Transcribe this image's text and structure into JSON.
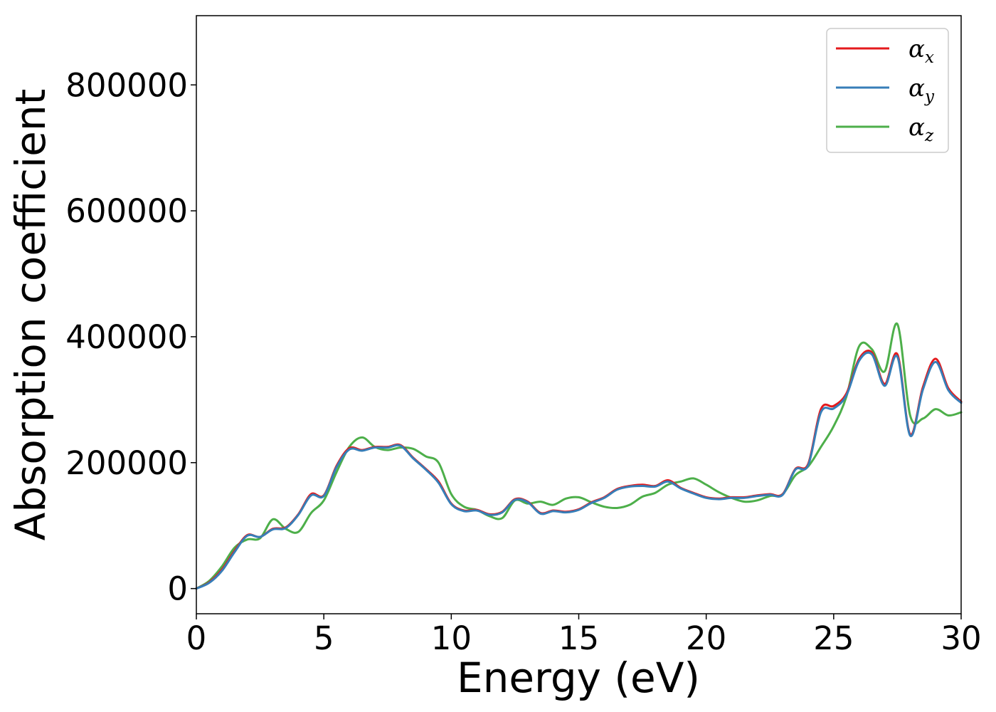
{
  "chart_data": {
    "type": "line",
    "xlabel": "Energy (eV)",
    "ylabel": "Absorption coefficient",
    "xlim": [
      0,
      30
    ],
    "ylim": [
      -40000,
      910000
    ],
    "xticks": [
      0,
      5,
      10,
      15,
      20,
      25,
      30
    ],
    "xtick_labels": [
      "0",
      "5",
      "10",
      "15",
      "20",
      "25",
      "30"
    ],
    "yticks": [
      0,
      200000,
      400000,
      600000,
      800000
    ],
    "ytick_labels": [
      "0",
      "200000",
      "400000",
      "600000",
      "800000"
    ],
    "grid": false,
    "legend_position": "top-right",
    "series": [
      {
        "name": "α",
        "subscript": "x",
        "color": "#e41a1c",
        "x": [
          0,
          0.5,
          1,
          1.5,
          2,
          2.5,
          3,
          3.5,
          4,
          4.5,
          5,
          5.5,
          6,
          6.5,
          7,
          7.5,
          8,
          8.5,
          9,
          9.5,
          10,
          10.5,
          11,
          11.5,
          12,
          12.5,
          13,
          13.5,
          14,
          14.5,
          15,
          15.5,
          16,
          16.5,
          17,
          17.5,
          18,
          18.5,
          19,
          19.5,
          20,
          20.5,
          21,
          21.5,
          22,
          22.5,
          23,
          23.5,
          24,
          24.5,
          25,
          25.5,
          26,
          26.5,
          27,
          27.5,
          28,
          28.5,
          29,
          29.5,
          30
        ],
        "y": [
          0,
          10000,
          30000,
          60000,
          85000,
          82000,
          95000,
          97000,
          118000,
          150000,
          148000,
          195000,
          223000,
          220000,
          225000,
          225000,
          228000,
          208000,
          190000,
          170000,
          135000,
          124000,
          125000,
          118000,
          122000,
          142000,
          138000,
          120000,
          124000,
          122000,
          126000,
          137000,
          145000,
          158000,
          163000,
          165000,
          163000,
          172000,
          160000,
          152000,
          145000,
          143000,
          145000,
          145000,
          148000,
          150000,
          150000,
          190000,
          198000,
          285000,
          290000,
          310000,
          365000,
          375000,
          325000,
          372000,
          245000,
          320000,
          365000,
          318000,
          297000
        ]
      },
      {
        "name": "α",
        "subscript": "y",
        "color": "#377eb8",
        "x": [
          0,
          0.5,
          1,
          1.5,
          2,
          2.5,
          3,
          3.5,
          4,
          4.5,
          5,
          5.5,
          6,
          6.5,
          7,
          7.5,
          8,
          8.5,
          9,
          9.5,
          10,
          10.5,
          11,
          11.5,
          12,
          12.5,
          13,
          13.5,
          14,
          14.5,
          15,
          15.5,
          16,
          16.5,
          17,
          17.5,
          18,
          18.5,
          19,
          19.5,
          20,
          20.5,
          21,
          21.5,
          22,
          22.5,
          23,
          23.5,
          24,
          24.5,
          25,
          25.5,
          26,
          26.5,
          27,
          27.5,
          28,
          28.5,
          29,
          29.5,
          30
        ],
        "y": [
          0,
          9000,
          28000,
          58000,
          84000,
          82000,
          94000,
          96000,
          117000,
          148000,
          147000,
          193000,
          221000,
          219000,
          224000,
          224000,
          227000,
          207000,
          189000,
          168000,
          134000,
          123000,
          124000,
          117000,
          121000,
          141000,
          137000,
          119000,
          123000,
          121000,
          125000,
          136000,
          144000,
          157000,
          162000,
          163000,
          162000,
          170000,
          159000,
          151000,
          144000,
          142000,
          144000,
          144000,
          147000,
          149000,
          149000,
          189000,
          196000,
          280000,
          286000,
          307000,
          362000,
          372000,
          322000,
          368000,
          243000,
          316000,
          360000,
          315000,
          295000
        ]
      },
      {
        "name": "α",
        "subscript": "z",
        "color": "#4daf4a",
        "x": [
          0,
          0.5,
          1,
          1.5,
          2,
          2.5,
          3,
          3.5,
          4,
          4.5,
          5,
          5.5,
          6,
          6.5,
          7,
          7.5,
          8,
          8.5,
          9,
          9.5,
          10,
          10.5,
          11,
          11.5,
          12,
          12.5,
          13,
          13.5,
          14,
          14.5,
          15,
          15.5,
          16,
          16.5,
          17,
          17.5,
          18,
          18.5,
          19,
          19.5,
          20,
          20.5,
          21,
          21.5,
          22,
          22.5,
          23,
          23.5,
          24,
          24.5,
          25,
          25.5,
          26,
          26.5,
          27,
          27.5,
          28,
          28.5,
          29,
          29.5,
          30
        ],
        "y": [
          0,
          12000,
          35000,
          65000,
          78000,
          80000,
          110000,
          95000,
          90000,
          120000,
          140000,
          185000,
          225000,
          240000,
          225000,
          220000,
          224000,
          222000,
          210000,
          200000,
          150000,
          130000,
          125000,
          115000,
          112000,
          140000,
          135000,
          138000,
          133000,
          143000,
          145000,
          137000,
          130000,
          128000,
          133000,
          146000,
          152000,
          165000,
          170000,
          175000,
          165000,
          153000,
          144000,
          138000,
          140000,
          147000,
          150000,
          180000,
          194000,
          225000,
          258000,
          305000,
          385000,
          380000,
          345000,
          420000,
          275000,
          270000,
          285000,
          275000,
          280000
        ]
      }
    ]
  }
}
